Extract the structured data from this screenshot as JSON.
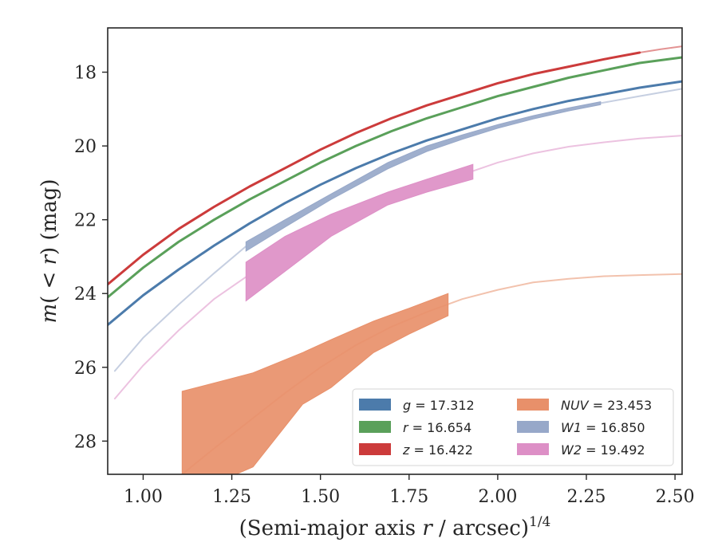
{
  "chart_data": {
    "type": "line",
    "xlabel_main": "(Semi-major axis ",
    "xlabel_r": "r",
    "xlabel_unit": " / arcsec)",
    "xlabel_exp": "1/4",
    "ylabel_m": "m",
    "ylabel_paren": "(",
    "ylabel_lt": " < ",
    "ylabel_r": "r",
    "ylabel_close": ")",
    "ylabel_unit": " (mag)",
    "xlim": [
      0.9,
      2.52
    ],
    "ylim": [
      28.9,
      16.8
    ],
    "y_inverted": true,
    "xticks": [
      1.0,
      1.25,
      1.5,
      1.75,
      2.0,
      2.25,
      2.5
    ],
    "xtick_labels": [
      "1.00",
      "1.25",
      "1.50",
      "1.75",
      "2.00",
      "2.25",
      "2.50"
    ],
    "yticks": [
      18,
      20,
      22,
      24,
      26,
      28
    ],
    "ytick_labels": [
      "18",
      "20",
      "22",
      "24",
      "26",
      "28"
    ],
    "grid": false,
    "legend_position": "lower-right",
    "series": [
      {
        "name": "g",
        "label_value": "17.312",
        "color": "#4c7bab",
        "kind": "line",
        "solid_x": [
          0.9,
          1.0,
          1.1,
          1.2,
          1.3,
          1.4,
          1.5,
          1.6,
          1.7,
          1.8,
          1.9,
          2.0,
          2.1,
          2.2,
          2.3,
          2.4,
          2.52
        ],
        "solid_y": [
          24.85,
          24.05,
          23.35,
          22.7,
          22.1,
          21.55,
          21.05,
          20.6,
          20.2,
          19.85,
          19.55,
          19.25,
          19.0,
          18.78,
          18.6,
          18.42,
          18.25
        ]
      },
      {
        "name": "r",
        "label_value": "16.654",
        "color": "#5aa05a",
        "kind": "line",
        "solid_x": [
          0.9,
          1.0,
          1.1,
          1.2,
          1.3,
          1.4,
          1.5,
          1.6,
          1.7,
          1.8,
          1.9,
          2.0,
          2.1,
          2.2,
          2.3,
          2.4,
          2.52
        ],
        "solid_y": [
          24.1,
          23.3,
          22.6,
          22.0,
          21.45,
          20.95,
          20.45,
          20.0,
          19.6,
          19.25,
          18.95,
          18.65,
          18.4,
          18.15,
          17.95,
          17.75,
          17.6
        ]
      },
      {
        "name": "z",
        "label_value": "16.422",
        "color": "#cc3b3b",
        "kind": "line",
        "solid_x": [
          0.9,
          1.0,
          1.1,
          1.2,
          1.3,
          1.4,
          1.5,
          1.6,
          1.7,
          1.8,
          1.9,
          2.0,
          2.1,
          2.2,
          2.3,
          2.4
        ],
        "solid_y": [
          23.75,
          22.95,
          22.25,
          21.65,
          21.1,
          20.6,
          20.1,
          19.65,
          19.25,
          18.9,
          18.6,
          18.3,
          18.05,
          17.85,
          17.65,
          17.47
        ],
        "faint_x": [
          2.4,
          2.46,
          2.52
        ],
        "faint_y": [
          17.47,
          17.38,
          17.3
        ]
      },
      {
        "name": "NUV",
        "label_value": "23.453",
        "color": "#e8906a",
        "kind": "band",
        "band_x": [
          1.11,
          1.25,
          1.31,
          1.45,
          1.53,
          1.65,
          1.75,
          1.86
        ],
        "band_upper": [
          26.65,
          26.3,
          26.15,
          25.6,
          25.25,
          24.75,
          24.4,
          24.0
        ],
        "band_lower": [
          28.95,
          28.95,
          28.7,
          27.0,
          26.55,
          25.6,
          25.1,
          24.6
        ],
        "faint_x": [
          1.11,
          1.2,
          1.3,
          1.4,
          1.5,
          1.6,
          1.7,
          1.8,
          1.9,
          2.0,
          2.1,
          2.2,
          2.3,
          2.4,
          2.52
        ],
        "faint_y": [
          28.9,
          28.2,
          27.45,
          26.7,
          26.0,
          25.4,
          24.9,
          24.5,
          24.15,
          23.9,
          23.7,
          23.6,
          23.53,
          23.5,
          23.47
        ]
      },
      {
        "name": "W1",
        "label_value": "16.850",
        "color": "#97a8c9",
        "kind": "band",
        "band_x": [
          1.29,
          1.4,
          1.53,
          1.69,
          1.8,
          1.9,
          2.0,
          2.1,
          2.2,
          2.29
        ],
        "band_upper": [
          22.6,
          22.0,
          21.3,
          20.45,
          20.0,
          19.7,
          19.42,
          19.18,
          18.97,
          18.8
        ],
        "band_lower": [
          22.85,
          22.2,
          21.45,
          20.62,
          20.15,
          19.82,
          19.52,
          19.27,
          19.05,
          18.88
        ],
        "faint_x": [
          0.92,
          1.0,
          1.1,
          1.2,
          1.29
        ],
        "faint_y": [
          26.1,
          25.2,
          24.3,
          23.45,
          22.72
        ],
        "faint2_x": [
          2.29,
          2.4,
          2.52
        ],
        "faint2_y": [
          18.84,
          18.65,
          18.45
        ]
      },
      {
        "name": "W2",
        "label_value": "19.492",
        "color": "#dd8fc6",
        "kind": "band",
        "band_x": [
          1.29,
          1.4,
          1.53,
          1.69,
          1.8,
          1.93
        ],
        "band_upper": [
          23.15,
          22.45,
          21.85,
          21.25,
          20.9,
          20.5
        ],
        "band_lower": [
          24.2,
          23.4,
          22.45,
          21.6,
          21.25,
          20.9
        ],
        "faint_x": [
          0.92,
          1.0,
          1.1,
          1.2,
          1.29
        ],
        "faint_y": [
          26.85,
          25.95,
          25.0,
          24.15,
          23.55
        ],
        "faint2_x": [
          1.93,
          2.0,
          2.1,
          2.2,
          2.3,
          2.4,
          2.52
        ],
        "faint2_y": [
          20.68,
          20.45,
          20.2,
          20.02,
          19.9,
          19.8,
          19.72
        ]
      }
    ],
    "legend": [
      [
        "g",
        "17.312",
        "#4c7bab"
      ],
      [
        "r",
        "16.654",
        "#5aa05a"
      ],
      [
        "z",
        "16.422",
        "#cc3b3b"
      ],
      [
        "NUV",
        "23.453",
        "#e8906a"
      ],
      [
        "W1",
        "16.850",
        "#97a8c9"
      ],
      [
        "W2",
        "19.492",
        "#dd8fc6"
      ]
    ]
  }
}
